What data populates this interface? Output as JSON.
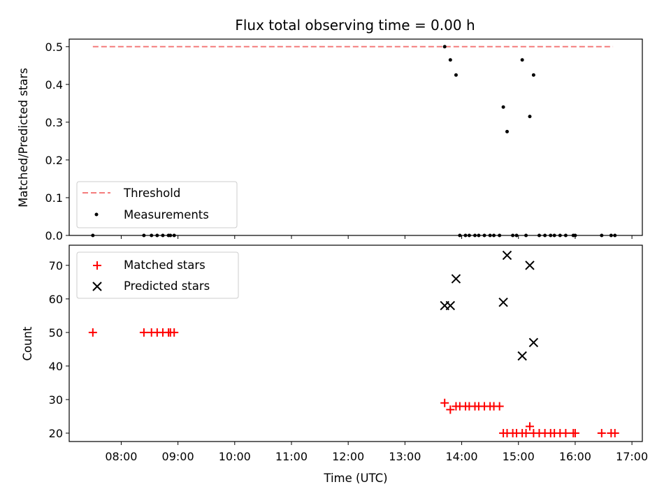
{
  "chart_data": [
    {
      "type": "scatter",
      "title": "Flux total observing time = 0.00 h",
      "xlabel": "",
      "ylabel": "Matched/Predicted stars",
      "ylim": [
        0,
        0.52
      ],
      "yticks": [
        "0.0",
        "0.1",
        "0.2",
        "0.3",
        "0.4",
        "0.5"
      ],
      "threshold": {
        "name": "Threshold",
        "value": 0.5,
        "x_range": [
          "07:30",
          "16:40"
        ],
        "color": "#f47c7c"
      },
      "series": [
        {
          "name": "Measurements",
          "color": "#000000",
          "x": [
            "07:30",
            "08:24",
            "08:32",
            "08:38",
            "08:44",
            "08:50",
            "08:52",
            "08:56",
            "13:42",
            "13:48",
            "13:54",
            "13:58",
            "14:04",
            "14:08",
            "14:14",
            "14:18",
            "14:24",
            "14:30",
            "14:34",
            "14:40",
            "14:44",
            "14:48",
            "14:54",
            "14:58",
            "15:04",
            "15:08",
            "15:12",
            "15:16",
            "15:22",
            "15:28",
            "15:34",
            "15:38",
            "15:44",
            "15:50",
            "15:58",
            "16:00",
            "16:28",
            "16:38",
            "16:42"
          ],
          "y": [
            0,
            0,
            0,
            0,
            0,
            0,
            0,
            0,
            0.5,
            0.465,
            0.425,
            0,
            0,
            0,
            0,
            0,
            0,
            0,
            0,
            0,
            0.34,
            0.275,
            0,
            0,
            0.465,
            0,
            0.315,
            0.425,
            0,
            0,
            0,
            0,
            0,
            0,
            0,
            0,
            0,
            0,
            0
          ]
        }
      ],
      "legend_position": "lower-left"
    },
    {
      "type": "scatter",
      "title": "",
      "xlabel": "Time (UTC)",
      "ylabel": "Count",
      "ylim": [
        17.5,
        76
      ],
      "yticks": [
        "20",
        "30",
        "40",
        "50",
        "60",
        "70"
      ],
      "xticks": [
        "08:00",
        "09:00",
        "10:00",
        "11:00",
        "12:00",
        "13:00",
        "14:00",
        "15:00",
        "16:00",
        "17:00"
      ],
      "series": [
        {
          "name": "Matched stars",
          "color": "#ff0000",
          "marker": "plus",
          "x": [
            "07:30",
            "08:24",
            "08:32",
            "08:38",
            "08:44",
            "08:50",
            "08:52",
            "08:56",
            "13:42",
            "13:48",
            "13:54",
            "13:58",
            "14:04",
            "14:08",
            "14:14",
            "14:18",
            "14:24",
            "14:30",
            "14:34",
            "14:40",
            "14:44",
            "14:48",
            "14:54",
            "14:58",
            "15:04",
            "15:08",
            "15:12",
            "15:16",
            "15:22",
            "15:28",
            "15:34",
            "15:38",
            "15:44",
            "15:50",
            "15:58",
            "16:00",
            "16:28",
            "16:38",
            "16:42"
          ],
          "y": [
            50,
            50,
            50,
            50,
            50,
            50,
            50,
            50,
            29,
            27,
            28,
            28,
            28,
            28,
            28,
            28,
            28,
            28,
            28,
            28,
            20,
            20,
            20,
            20,
            20,
            20,
            22,
            20,
            20,
            20,
            20,
            20,
            20,
            20,
            20,
            20,
            20,
            20,
            20
          ]
        },
        {
          "name": "Predicted stars",
          "color": "#000000",
          "marker": "x",
          "x": [
            "13:42",
            "13:48",
            "13:54",
            "14:44",
            "14:48",
            "15:04",
            "15:12",
            "15:16"
          ],
          "y": [
            58,
            58,
            66,
            59,
            73,
            43,
            70,
            47
          ]
        }
      ],
      "legend_position": "upper-left"
    }
  ]
}
